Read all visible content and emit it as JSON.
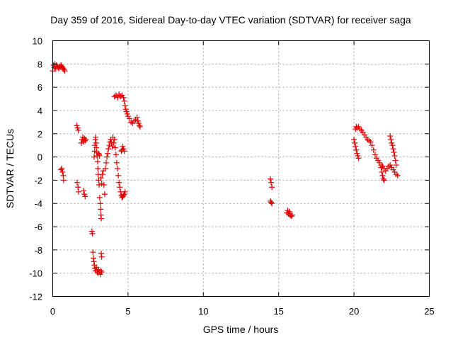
{
  "chart_data": {
    "type": "scatter",
    "title": "Day 359 of 2016, Sidereal Day-to-day VTEC variation (SDTVAR) for receiver saga",
    "xlabel": "GPS time / hours",
    "ylabel": "SDTVAR / TECUs",
    "xlim": [
      0,
      25
    ],
    "ylim": [
      -12,
      10
    ],
    "xticks": [
      0,
      5,
      10,
      15,
      20,
      25
    ],
    "yticks": [
      -12,
      -10,
      -8,
      -6,
      -4,
      -2,
      0,
      2,
      4,
      6,
      8,
      10
    ],
    "grid": true,
    "marker": "+",
    "color": "#e00000",
    "series": [
      {
        "name": "SDTVAR",
        "segments": [
          [
            [
              0.0,
              7.4
            ],
            [
              0.05,
              7.9
            ],
            [
              0.1,
              7.7
            ],
            [
              0.15,
              8.0
            ],
            [
              0.2,
              7.6
            ],
            [
              0.25,
              7.9
            ],
            [
              0.3,
              7.8
            ],
            [
              0.35,
              7.7
            ],
            [
              0.4,
              7.6
            ],
            [
              0.45,
              7.8
            ],
            [
              0.5,
              7.7
            ],
            [
              0.55,
              7.9
            ],
            [
              0.6,
              7.8
            ],
            [
              0.65,
              7.7
            ],
            [
              0.7,
              7.6
            ],
            [
              0.75,
              7.5
            ],
            [
              0.8,
              7.4
            ]
          ],
          [
            [
              0.55,
              -1.1
            ],
            [
              0.6,
              -1.0
            ],
            [
              0.65,
              -1.3
            ],
            [
              0.7,
              -1.6
            ],
            [
              0.72,
              -2.0
            ]
          ],
          [
            [
              1.6,
              2.7
            ],
            [
              1.65,
              2.5
            ],
            [
              1.7,
              2.3
            ],
            [
              1.62,
              -2.2
            ],
            [
              1.68,
              -2.6
            ],
            [
              1.72,
              -3.0
            ]
          ],
          [
            [
              1.9,
              1.2
            ],
            [
              1.95,
              1.5
            ],
            [
              2.0,
              1.7
            ],
            [
              2.05,
              1.3
            ],
            [
              2.1,
              1.6
            ],
            [
              2.15,
              1.4
            ],
            [
              2.2,
              1.5
            ],
            [
              2.05,
              -2.9
            ],
            [
              2.1,
              -3.2
            ],
            [
              2.15,
              -3.4
            ]
          ],
          [
            [
              2.6,
              -6.4
            ],
            [
              2.63,
              -6.6
            ],
            [
              2.67,
              -8.2
            ],
            [
              2.7,
              -8.7
            ],
            [
              2.73,
              -9.0
            ],
            [
              2.77,
              -9.3
            ],
            [
              2.8,
              -9.6
            ],
            [
              2.85,
              -9.8
            ],
            [
              2.9,
              -9.5
            ],
            [
              2.95,
              -9.9
            ],
            [
              3.0,
              -10.0
            ],
            [
              3.05,
              -9.7
            ],
            [
              3.1,
              -9.9
            ],
            [
              3.15,
              -10.1
            ],
            [
              3.2,
              -9.8
            ],
            [
              3.25,
              -9.9
            ]
          ],
          [
            [
              2.75,
              0.0
            ],
            [
              2.78,
              0.5
            ],
            [
              2.8,
              1.0
            ],
            [
              2.83,
              1.5
            ],
            [
              2.85,
              1.7
            ],
            [
              2.88,
              1.2
            ],
            [
              2.9,
              0.8
            ],
            [
              2.93,
              0.4
            ],
            [
              2.95,
              0.1
            ],
            [
              2.98,
              -0.4
            ],
            [
              3.0,
              -1.0
            ],
            [
              3.02,
              -1.5
            ],
            [
              3.05,
              -2.0
            ],
            [
              3.08,
              -2.4
            ]
          ],
          [
            [
              3.05,
              0.3
            ],
            [
              3.08,
              0.2
            ],
            [
              3.1,
              0.1
            ]
          ],
          [
            [
              3.12,
              -3.5
            ],
            [
              3.15,
              -4.0
            ],
            [
              3.18,
              -4.5
            ],
            [
              3.2,
              -5.0
            ],
            [
              3.22,
              -5.3
            ]
          ],
          [
            [
              3.2,
              -1.8
            ],
            [
              3.25,
              -2.3
            ],
            [
              3.3,
              -1.5
            ],
            [
              3.35,
              -1.2
            ],
            [
              3.4,
              -2.4
            ],
            [
              3.45,
              -3.2
            ]
          ],
          [
            [
              3.22,
              -8.3
            ],
            [
              3.25,
              -8.6
            ]
          ],
          [
            [
              3.5,
              -1.0
            ],
            [
              3.55,
              -0.5
            ],
            [
              3.6,
              0.0
            ],
            [
              3.65,
              0.3
            ],
            [
              3.7,
              0.7
            ],
            [
              3.75,
              1.0
            ],
            [
              3.8,
              1.3
            ],
            [
              3.85,
              1.5
            ],
            [
              3.9,
              1.2
            ],
            [
              3.95,
              0.9
            ],
            [
              4.0,
              1.7
            ],
            [
              4.05,
              1.2
            ]
          ],
          [
            [
              4.1,
              1.5
            ],
            [
              4.15,
              0.8
            ],
            [
              4.2,
              0.2
            ],
            [
              4.25,
              -0.5
            ],
            [
              4.3,
              -1.0
            ],
            [
              4.35,
              -1.6
            ],
            [
              4.4,
              -2.2
            ],
            [
              4.45,
              -2.6
            ],
            [
              4.5,
              -3.0
            ],
            [
              4.55,
              -3.3
            ],
            [
              4.6,
              -3.5
            ],
            [
              4.65,
              -3.4
            ],
            [
              4.7,
              -3.3
            ],
            [
              4.75,
              -3.2
            ],
            [
              4.8,
              -3.0
            ]
          ],
          [
            [
              4.55,
              0.5
            ],
            [
              4.6,
              0.6
            ],
            [
              4.65,
              0.9
            ],
            [
              4.7,
              0.7
            ],
            [
              4.75,
              0.5
            ]
          ],
          [
            [
              4.1,
              5.2
            ],
            [
              4.2,
              5.3
            ],
            [
              4.3,
              5.1
            ],
            [
              4.4,
              5.4
            ],
            [
              4.5,
              5.2
            ],
            [
              4.6,
              5.3
            ],
            [
              4.7,
              5.1
            ],
            [
              4.75,
              4.8
            ],
            [
              4.8,
              4.4
            ],
            [
              4.85,
              4.1
            ],
            [
              4.9,
              3.9
            ],
            [
              4.95,
              3.7
            ],
            [
              5.0,
              3.5
            ],
            [
              5.1,
              3.3
            ],
            [
              5.2,
              3.0
            ],
            [
              5.3,
              2.9
            ],
            [
              5.4,
              3.1
            ],
            [
              5.5,
              3.2
            ],
            [
              5.6,
              3.4
            ],
            [
              5.65,
              3.1
            ],
            [
              5.7,
              2.9
            ],
            [
              5.75,
              2.7
            ],
            [
              5.8,
              2.6
            ]
          ],
          [
            [
              14.45,
              -1.9
            ],
            [
              14.5,
              -2.2
            ],
            [
              14.55,
              -2.6
            ],
            [
              14.45,
              -3.8
            ],
            [
              14.5,
              -3.9
            ],
            [
              14.55,
              -4.0
            ]
          ],
          [
            [
              15.55,
              -4.8
            ],
            [
              15.6,
              -4.6
            ],
            [
              15.65,
              -4.9
            ],
            [
              15.7,
              -4.7
            ],
            [
              15.75,
              -5.0
            ],
            [
              15.8,
              -5.0
            ],
            [
              15.85,
              -5.1
            ],
            [
              15.9,
              -5.0
            ]
          ],
          [
            [
              20.0,
              1.5
            ],
            [
              20.05,
              1.2
            ],
            [
              20.1,
              0.9
            ],
            [
              20.15,
              0.6
            ],
            [
              20.2,
              0.3
            ],
            [
              20.25,
              0.1
            ],
            [
              20.3,
              -0.1
            ]
          ],
          [
            [
              20.1,
              2.4
            ],
            [
              20.15,
              2.6
            ],
            [
              20.2,
              2.5
            ],
            [
              20.3,
              2.6
            ],
            [
              20.4,
              2.4
            ],
            [
              20.5,
              2.3
            ],
            [
              20.6,
              2.1
            ],
            [
              20.7,
              1.9
            ],
            [
              20.8,
              1.7
            ],
            [
              20.9,
              1.5
            ],
            [
              21.0,
              1.4
            ],
            [
              21.1,
              1.3
            ],
            [
              21.2,
              1.0
            ],
            [
              21.3,
              0.6
            ],
            [
              21.4,
              0.2
            ],
            [
              21.5,
              -0.1
            ],
            [
              21.6,
              -0.3
            ],
            [
              21.7,
              -0.5
            ],
            [
              21.8,
              -0.7
            ],
            [
              21.9,
              -0.8
            ],
            [
              22.0,
              -1.0
            ],
            [
              22.1,
              -1.2
            ],
            [
              22.2,
              -1.0
            ],
            [
              22.3,
              -0.8
            ],
            [
              22.4,
              -0.7
            ],
            [
              22.5,
              -0.9
            ],
            [
              22.6,
              -1.1
            ],
            [
              22.7,
              -1.3
            ],
            [
              22.8,
              -1.5
            ],
            [
              22.9,
              -1.6
            ]
          ],
          [
            [
              21.8,
              -0.9
            ],
            [
              21.85,
              -1.3
            ],
            [
              21.9,
              -1.6
            ],
            [
              21.95,
              -1.9
            ],
            [
              22.0,
              -2.0
            ]
          ],
          [
            [
              22.4,
              1.8
            ],
            [
              22.45,
              1.5
            ],
            [
              22.5,
              1.2
            ],
            [
              22.55,
              1.0
            ],
            [
              22.6,
              0.7
            ],
            [
              22.65,
              0.4
            ],
            [
              22.7,
              0.1
            ],
            [
              22.75,
              -0.3
            ],
            [
              22.8,
              -0.7
            ]
          ]
        ]
      }
    ]
  }
}
